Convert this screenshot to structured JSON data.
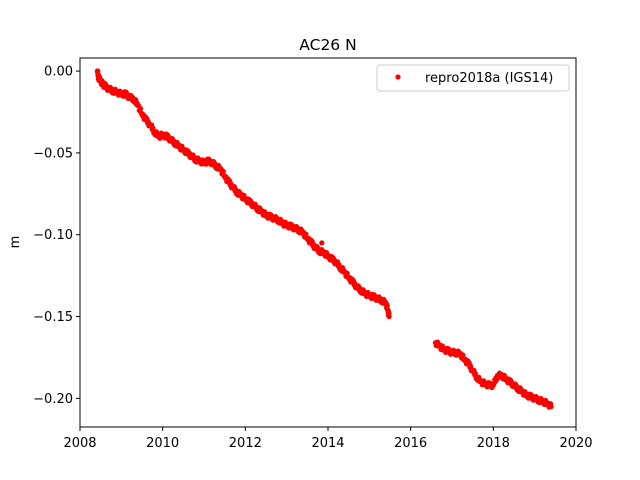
{
  "chart_data": {
    "type": "scatter",
    "title": "AC26 N",
    "xlabel": "",
    "ylabel": "m",
    "xlim": [
      2008.0,
      2020.0
    ],
    "ylim": [
      -0.2175,
      0.008
    ],
    "xticks": [
      2008,
      2010,
      2012,
      2014,
      2016,
      2018,
      2020
    ],
    "yticks": [
      0.0,
      -0.05,
      -0.1,
      -0.15,
      -0.2
    ],
    "xtick_labels": [
      "2008",
      "2010",
      "2012",
      "2014",
      "2016",
      "2018",
      "2020"
    ],
    "ytick_labels": [
      "0.00",
      "−0.05",
      "−0.10",
      "−0.15",
      "−0.20"
    ],
    "grid": false,
    "legend_position": "top-right",
    "series": [
      {
        "name": "repro2018a (IGS14)",
        "color": "#ff0000",
        "marker": "dot",
        "points": [
          [
            2008.42,
            0.0
          ],
          [
            2008.45,
            -0.004
          ],
          [
            2008.5,
            -0.006
          ],
          [
            2008.55,
            -0.008
          ],
          [
            2008.6,
            -0.009
          ],
          [
            2008.7,
            -0.011
          ],
          [
            2008.8,
            -0.012
          ],
          [
            2008.9,
            -0.013
          ],
          [
            2009.0,
            -0.014
          ],
          [
            2009.1,
            -0.014
          ],
          [
            2009.2,
            -0.016
          ],
          [
            2009.3,
            -0.017
          ],
          [
            2009.4,
            -0.021
          ],
          [
            2009.5,
            -0.026
          ],
          [
            2009.6,
            -0.03
          ],
          [
            2009.7,
            -0.033
          ],
          [
            2009.8,
            -0.037
          ],
          [
            2009.9,
            -0.04
          ],
          [
            2010.0,
            -0.039
          ],
          [
            2010.1,
            -0.04
          ],
          [
            2010.2,
            -0.042
          ],
          [
            2010.3,
            -0.044
          ],
          [
            2010.4,
            -0.046
          ],
          [
            2010.5,
            -0.048
          ],
          [
            2010.6,
            -0.05
          ],
          [
            2010.7,
            -0.052
          ],
          [
            2010.8,
            -0.054
          ],
          [
            2010.9,
            -0.055
          ],
          [
            2011.0,
            -0.056
          ],
          [
            2011.1,
            -0.055
          ],
          [
            2011.2,
            -0.056
          ],
          [
            2011.3,
            -0.058
          ],
          [
            2011.4,
            -0.06
          ],
          [
            2011.5,
            -0.064
          ],
          [
            2011.6,
            -0.068
          ],
          [
            2011.7,
            -0.071
          ],
          [
            2011.8,
            -0.074
          ],
          [
            2011.9,
            -0.076
          ],
          [
            2012.0,
            -0.078
          ],
          [
            2012.1,
            -0.08
          ],
          [
            2012.2,
            -0.082
          ],
          [
            2012.3,
            -0.084
          ],
          [
            2012.4,
            -0.086
          ],
          [
            2012.5,
            -0.088
          ],
          [
            2012.6,
            -0.089
          ],
          [
            2012.7,
            -0.09
          ],
          [
            2012.8,
            -0.091
          ],
          [
            2012.9,
            -0.093
          ],
          [
            2013.0,
            -0.094
          ],
          [
            2013.1,
            -0.095
          ],
          [
            2013.2,
            -0.096
          ],
          [
            2013.3,
            -0.097
          ],
          [
            2013.4,
            -0.099
          ],
          [
            2013.5,
            -0.102
          ],
          [
            2013.6,
            -0.105
          ],
          [
            2013.7,
            -0.108
          ],
          [
            2013.8,
            -0.11
          ],
          [
            2013.9,
            -0.111
          ],
          [
            2014.0,
            -0.113
          ],
          [
            2014.1,
            -0.115
          ],
          [
            2014.2,
            -0.117
          ],
          [
            2014.3,
            -0.12
          ],
          [
            2014.4,
            -0.123
          ],
          [
            2014.5,
            -0.126
          ],
          [
            2014.6,
            -0.129
          ],
          [
            2014.7,
            -0.132
          ],
          [
            2014.8,
            -0.134
          ],
          [
            2014.9,
            -0.136
          ],
          [
            2015.0,
            -0.137
          ],
          [
            2015.1,
            -0.138
          ],
          [
            2015.2,
            -0.139
          ],
          [
            2015.3,
            -0.14
          ],
          [
            2015.4,
            -0.142
          ],
          [
            2015.45,
            -0.146
          ],
          [
            2015.48,
            -0.15
          ],
          [
            2013.85,
            -0.105
          ],
          [
            2016.6,
            -0.166
          ],
          [
            2016.7,
            -0.168
          ],
          [
            2016.8,
            -0.17
          ],
          [
            2016.9,
            -0.171
          ],
          [
            2017.0,
            -0.172
          ],
          [
            2017.1,
            -0.172
          ],
          [
            2017.2,
            -0.173
          ],
          [
            2017.3,
            -0.176
          ],
          [
            2017.4,
            -0.179
          ],
          [
            2017.5,
            -0.183
          ],
          [
            2017.6,
            -0.187
          ],
          [
            2017.7,
            -0.19
          ],
          [
            2017.8,
            -0.191
          ],
          [
            2017.9,
            -0.192
          ],
          [
            2018.0,
            -0.192
          ],
          [
            2018.1,
            -0.186
          ],
          [
            2018.2,
            -0.186
          ],
          [
            2018.3,
            -0.188
          ],
          [
            2018.4,
            -0.19
          ],
          [
            2018.5,
            -0.192
          ],
          [
            2018.6,
            -0.194
          ],
          [
            2018.7,
            -0.196
          ],
          [
            2018.8,
            -0.198
          ],
          [
            2018.9,
            -0.199
          ],
          [
            2019.0,
            -0.2
          ],
          [
            2019.1,
            -0.201
          ],
          [
            2019.2,
            -0.202
          ],
          [
            2019.3,
            -0.203
          ],
          [
            2019.4,
            -0.205
          ]
        ]
      }
    ]
  }
}
